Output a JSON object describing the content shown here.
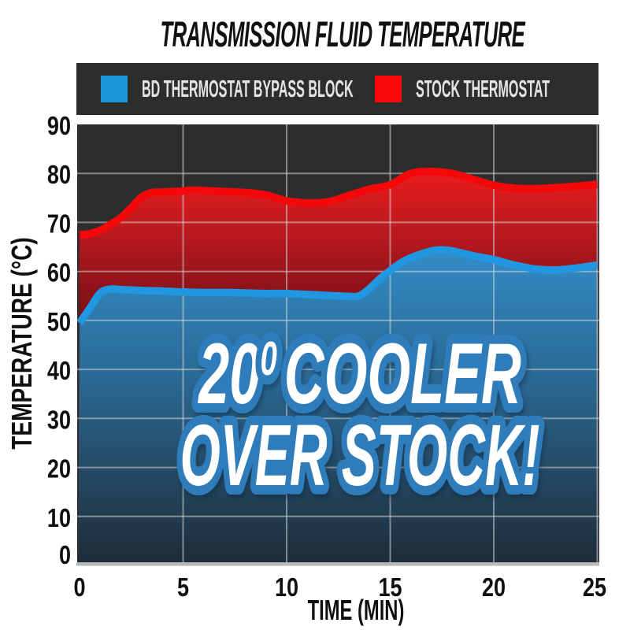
{
  "page": {
    "title": "TRANSMISSION FLUID TEMPERATURE",
    "background": "#ffffff"
  },
  "legend": {
    "background": "#2d2d2d",
    "text_color": "#e4e4e4",
    "items": [
      {
        "label": "BD THERMOSTAT BYPASS BLOCK",
        "color": "#1a97d9"
      },
      {
        "label": "STOCK THERMOSTAT",
        "color": "#fa0808"
      }
    ]
  },
  "overlay": {
    "line1_num": "20",
    "line1_sup": "0",
    "line1_rest": "COOLER",
    "line2": "OVER STOCK!",
    "fill": "#ffffff",
    "outline": "#2e7cba"
  },
  "chart_data": {
    "type": "area",
    "title": "TRANSMISSION FLUID TEMPERATURE",
    "xlabel": "TIME (MIN)",
    "ylabel": "TEMPERATURE (°C)",
    "xlim": [
      0,
      25
    ],
    "ylim": [
      0,
      90
    ],
    "x_ticks": [
      0,
      5,
      10,
      15,
      20,
      25
    ],
    "y_ticks": [
      0,
      10,
      20,
      30,
      40,
      50,
      60,
      70,
      80,
      90
    ],
    "grid": true,
    "legend_position": "top",
    "plot_background": "#2d2d2d",
    "grid_color": "#cdd3d7",
    "annotation": "20º COOLER OVER STOCK!",
    "series": [
      {
        "name": "BD THERMOSTAT BYPASS BLOCK",
        "type": "area",
        "line_color": "#2097e0",
        "x": [
          0,
          0.5,
          1,
          1.5,
          2,
          3,
          4,
          5,
          6,
          7,
          8,
          9,
          10,
          11,
          12,
          13,
          13.5,
          14,
          14.5,
          15,
          15.5,
          16,
          17,
          17.5,
          18,
          19,
          20,
          21,
          22,
          23,
          24,
          25
        ],
        "values": [
          49.5,
          52.5,
          55.6,
          56.4,
          56.3,
          56.1,
          56.0,
          55.8,
          55.7,
          55.7,
          55.6,
          55.5,
          55.5,
          55.3,
          55.1,
          54.9,
          55.0,
          56.5,
          58.5,
          60.2,
          61.7,
          62.8,
          64.2,
          64.4,
          64.2,
          63.2,
          62.4,
          61.3,
          60.5,
          60.3,
          60.7,
          61.3
        ]
      },
      {
        "name": "STOCK THERMOSTAT",
        "type": "area",
        "line_color": "#f50809",
        "x": [
          0,
          0.5,
          1,
          1.5,
          2,
          2.5,
          3,
          3.5,
          4,
          5,
          5.5,
          6,
          7,
          8,
          9,
          10,
          11,
          12,
          13,
          14,
          15,
          16,
          17,
          18,
          19,
          20,
          21,
          22,
          23,
          24,
          25
        ],
        "values": [
          67.5,
          67.7,
          68.4,
          69.6,
          71.0,
          73.0,
          75.2,
          76.1,
          76.2,
          76.4,
          76.6,
          76.5,
          76.3,
          76.1,
          75.6,
          74.4,
          74.0,
          74.2,
          75.5,
          76.8,
          77.7,
          80.0,
          80.4,
          80.0,
          78.8,
          77.6,
          77.0,
          76.9,
          77.1,
          77.4,
          77.8
        ]
      }
    ]
  }
}
